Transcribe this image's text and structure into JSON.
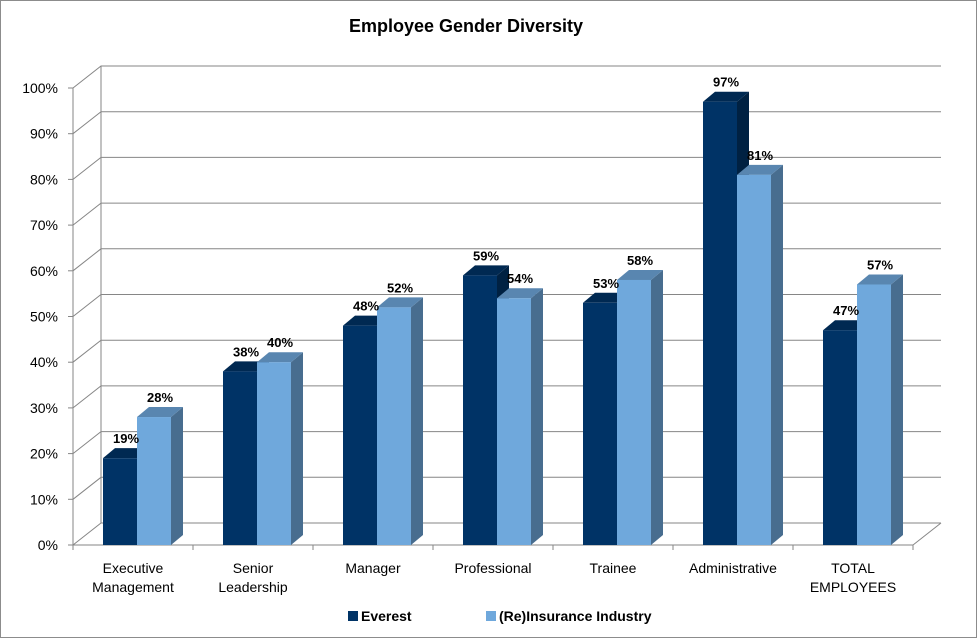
{
  "chart_data": {
    "type": "bar",
    "title": "Employee Gender Diversity",
    "categories": [
      [
        "Executive",
        "Management"
      ],
      [
        "Senior",
        "Leadership"
      ],
      [
        "Manager"
      ],
      [
        "Professional"
      ],
      [
        "Trainee"
      ],
      [
        "Administrative"
      ],
      [
        "TOTAL",
        "EMPLOYEES"
      ]
    ],
    "series": [
      {
        "name": "Everest",
        "values": [
          19,
          38,
          48,
          59,
          53,
          97,
          47
        ],
        "color": "#003366"
      },
      {
        "name": "(Re)Insurance Industry",
        "values": [
          28,
          40,
          52,
          54,
          58,
          81,
          57
        ],
        "color": "#6fa8dc"
      }
    ],
    "value_suffix": "%",
    "ylim": [
      0,
      100
    ],
    "ytick_step": 10,
    "xlabel": "",
    "ylabel": "",
    "grid": true,
    "legend_position": "bottom",
    "style": "3d-clustered-column"
  }
}
